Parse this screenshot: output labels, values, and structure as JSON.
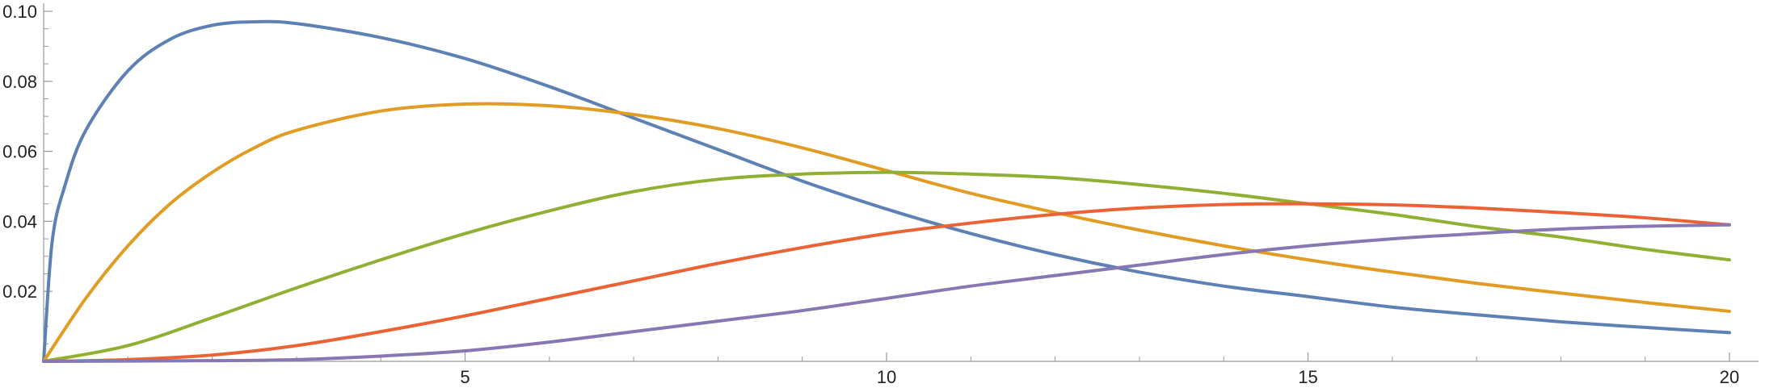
{
  "chart_data": {
    "type": "line",
    "title": "",
    "xlabel": "",
    "ylabel": "",
    "xlim": [
      0,
      20
    ],
    "ylim": [
      0,
      0.1
    ],
    "grid": false,
    "legend": "none",
    "x_ticks": [
      {
        "value": 5,
        "label": "5"
      },
      {
        "value": 10,
        "label": "10"
      },
      {
        "value": 15,
        "label": "15"
      },
      {
        "value": 20,
        "label": "20"
      }
    ],
    "y_ticks": [
      {
        "value": 0.02,
        "label": "0.02"
      },
      {
        "value": 0.04,
        "label": "0.04"
      },
      {
        "value": 0.06,
        "label": "0.06"
      },
      {
        "value": 0.08,
        "label": "0.08"
      },
      {
        "value": 0.1,
        "label": "0.10"
      }
    ],
    "x_minor_step": 1,
    "y_minor_step": 0.005,
    "series": [
      {
        "color": "#5E81B5",
        "x": [
          0,
          0.1,
          0.25,
          0.5,
          1,
          1.5,
          2,
          2.5,
          3,
          4,
          5,
          6,
          7,
          8,
          9,
          10,
          11,
          12,
          13,
          14,
          15,
          16,
          17,
          18,
          19,
          20
        ],
        "y": [
          0,
          0.034,
          0.05,
          0.066,
          0.083,
          0.092,
          0.096,
          0.097,
          0.0965,
          0.0925,
          0.0865,
          0.0785,
          0.0695,
          0.0605,
          0.0515,
          0.0435,
          0.0365,
          0.0305,
          0.0255,
          0.0215,
          0.0185,
          0.0155,
          0.0133,
          0.0113,
          0.0097,
          0.0082
        ]
      },
      {
        "color": "#E19C24",
        "x": [
          0,
          0.5,
          1,
          1.5,
          2,
          2.5,
          3,
          4,
          5,
          6,
          7,
          8,
          9,
          10,
          11,
          12,
          13,
          14,
          15,
          16,
          17,
          18,
          19,
          20
        ],
        "y": [
          0,
          0.018,
          0.033,
          0.045,
          0.054,
          0.061,
          0.066,
          0.0715,
          0.0735,
          0.073,
          0.0705,
          0.0665,
          0.061,
          0.0545,
          0.048,
          0.0425,
          0.0375,
          0.033,
          0.029,
          0.0255,
          0.0223,
          0.0195,
          0.0168,
          0.0143
        ]
      },
      {
        "color": "#8FB032",
        "x": [
          0,
          1,
          2,
          3,
          4,
          5,
          6,
          7,
          8,
          9,
          10,
          11,
          12,
          13,
          14,
          15,
          16,
          17,
          18,
          19,
          20
        ],
        "y": [
          0,
          0.0045,
          0.0125,
          0.021,
          0.029,
          0.0365,
          0.043,
          0.0485,
          0.052,
          0.0535,
          0.054,
          0.0535,
          0.0525,
          0.0505,
          0.048,
          0.045,
          0.042,
          0.0385,
          0.0355,
          0.032,
          0.029
        ]
      },
      {
        "color": "#EB6235",
        "x": [
          0,
          1,
          2,
          3,
          4,
          5,
          6,
          7,
          8,
          9,
          10,
          11,
          12,
          13,
          14,
          15,
          16,
          17,
          18,
          19,
          20
        ],
        "y": [
          0,
          0.0005,
          0.0018,
          0.0045,
          0.0085,
          0.013,
          0.018,
          0.023,
          0.028,
          0.0325,
          0.0365,
          0.0395,
          0.042,
          0.0438,
          0.0448,
          0.045,
          0.0447,
          0.0438,
          0.0425,
          0.041,
          0.039
        ]
      },
      {
        "color": "#8778B3",
        "x": [
          0,
          2,
          3,
          4,
          5,
          6,
          7,
          8,
          9,
          10,
          11,
          12,
          13,
          14,
          15,
          16,
          17,
          18,
          19,
          20
        ],
        "y": [
          0,
          0.0002,
          0.0005,
          0.0015,
          0.003,
          0.0055,
          0.0085,
          0.0115,
          0.0145,
          0.018,
          0.0215,
          0.0245,
          0.0275,
          0.0305,
          0.033,
          0.035,
          0.0365,
          0.0378,
          0.0386,
          0.039
        ]
      }
    ]
  }
}
